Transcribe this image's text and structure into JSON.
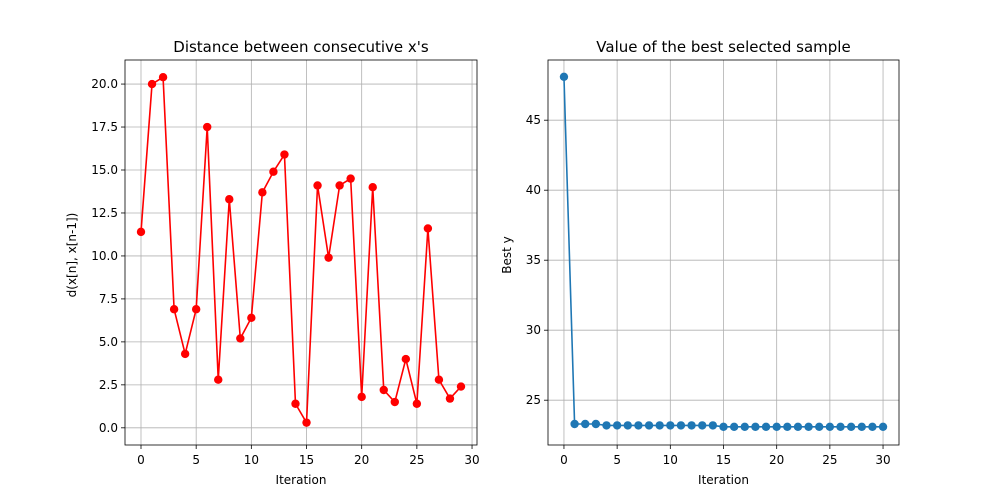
{
  "chart_data": [
    {
      "type": "line",
      "title": "Distance between consecutive x's",
      "xlabel": "Iteration",
      "ylabel": "d(x[n], x[n-1])",
      "xlim": [
        -1.45,
        30.45
      ],
      "ylim": [
        -1.0,
        21.4
      ],
      "xticks": [
        0,
        5,
        10,
        15,
        20,
        25,
        30
      ],
      "yticks": [
        0.0,
        2.5,
        5.0,
        7.5,
        10.0,
        12.5,
        15.0,
        17.5,
        20.0
      ],
      "ytick_labels": [
        "0.0",
        "2.5",
        "5.0",
        "7.5",
        "10.0",
        "12.5",
        "15.0",
        "17.5",
        "20.0"
      ],
      "grid": true,
      "marker": "circle",
      "color": "#ff0000",
      "series": [
        {
          "x": [
            0,
            1,
            2,
            3,
            4,
            5,
            6,
            7,
            8,
            9,
            10,
            11,
            12,
            13,
            14,
            15,
            16,
            17,
            18,
            19,
            20,
            21,
            22,
            23,
            24,
            25,
            26,
            27,
            28,
            29
          ],
          "values": [
            11.4,
            20.0,
            20.4,
            6.9,
            4.3,
            6.9,
            17.5,
            2.8,
            13.3,
            5.2,
            6.4,
            13.7,
            14.9,
            15.9,
            1.4,
            0.3,
            14.1,
            9.9,
            14.1,
            14.5,
            1.8,
            14.0,
            2.2,
            1.5,
            4.0,
            1.4,
            11.6,
            2.8,
            1.7,
            2.4
          ]
        }
      ]
    },
    {
      "type": "line",
      "title": "Value of the best selected sample",
      "xlabel": "Iteration",
      "ylabel": "Best y",
      "xlim": [
        -1.5,
        31.5
      ],
      "ylim": [
        21.8,
        49.3
      ],
      "xticks": [
        0,
        5,
        10,
        15,
        20,
        25,
        30
      ],
      "yticks": [
        25,
        30,
        35,
        40,
        45
      ],
      "ytick_labels": [
        "25",
        "30",
        "35",
        "40",
        "45"
      ],
      "grid": true,
      "marker": "circle",
      "color": "#1f77b4",
      "series": [
        {
          "x": [
            0,
            1,
            2,
            3,
            4,
            5,
            6,
            7,
            8,
            9,
            10,
            11,
            12,
            13,
            14,
            15,
            16,
            17,
            18,
            19,
            20,
            21,
            22,
            23,
            24,
            25,
            26,
            27,
            28,
            29,
            30
          ],
          "values": [
            48.1,
            23.3,
            23.3,
            23.3,
            23.2,
            23.2,
            23.2,
            23.2,
            23.2,
            23.2,
            23.2,
            23.2,
            23.2,
            23.2,
            23.2,
            23.1,
            23.1,
            23.1,
            23.1,
            23.1,
            23.1,
            23.1,
            23.1,
            23.1,
            23.1,
            23.1,
            23.1,
            23.1,
            23.1,
            23.1,
            23.1
          ]
        }
      ]
    }
  ]
}
